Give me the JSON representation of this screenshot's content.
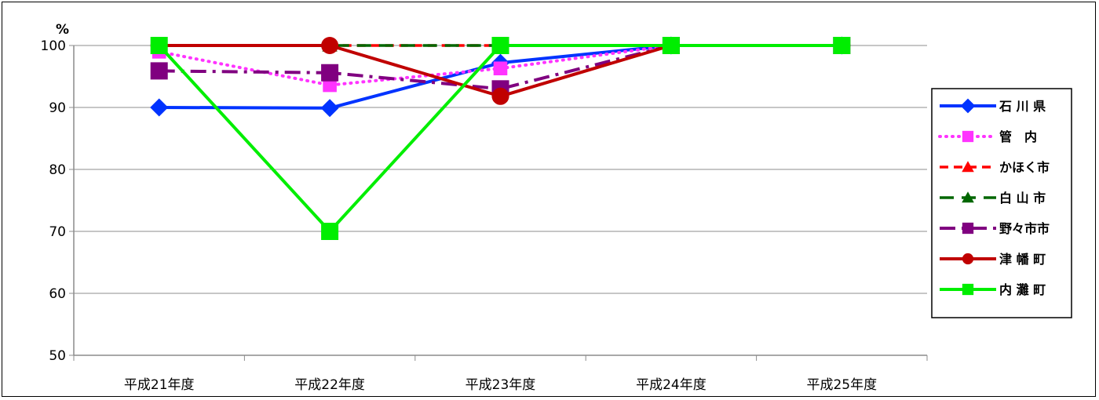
{
  "chart_data": {
    "type": "line",
    "unit": "%",
    "categories": [
      "平成21年度",
      "平成22年度",
      "平成23年度",
      "平成24年度",
      "平成25年度"
    ],
    "ylim": [
      50,
      100
    ],
    "yticks": [
      50,
      60,
      70,
      80,
      90,
      100
    ],
    "grid": true,
    "legend_position": "right",
    "series": [
      {
        "name": "石 川 県",
        "values": [
          90,
          89.9,
          97.2,
          100,
          100
        ],
        "color": "#0033ff",
        "dash": "solid",
        "marker": "diamond"
      },
      {
        "name": "管　内",
        "values": [
          99,
          93.6,
          96.3,
          100,
          100
        ],
        "color": "#ff33ff",
        "dash": "dotted",
        "marker": "square"
      },
      {
        "name": "かほく市",
        "values": [
          100,
          100,
          100,
          100,
          100
        ],
        "color": "#ff0000",
        "dash": "dashed",
        "marker": "triangle"
      },
      {
        "name": "白 山 市",
        "values": [
          100,
          100,
          100,
          100,
          100
        ],
        "color": "#006600",
        "dash": "longdash",
        "marker": "triangle"
      },
      {
        "name": "野々市市",
        "values": [
          95.9,
          95.6,
          93,
          100,
          100
        ],
        "color": "#800080",
        "dash": "dashdot",
        "marker": "square"
      },
      {
        "name": "津 幡 町",
        "values": [
          100,
          100,
          91.8,
          100,
          100
        ],
        "color": "#c00000",
        "dash": "solid",
        "marker": "circle"
      },
      {
        "name": "内 灘 町",
        "values": [
          100,
          70,
          100,
          100,
          100
        ],
        "color": "#00ee00",
        "dash": "solid",
        "marker": "square"
      }
    ]
  }
}
